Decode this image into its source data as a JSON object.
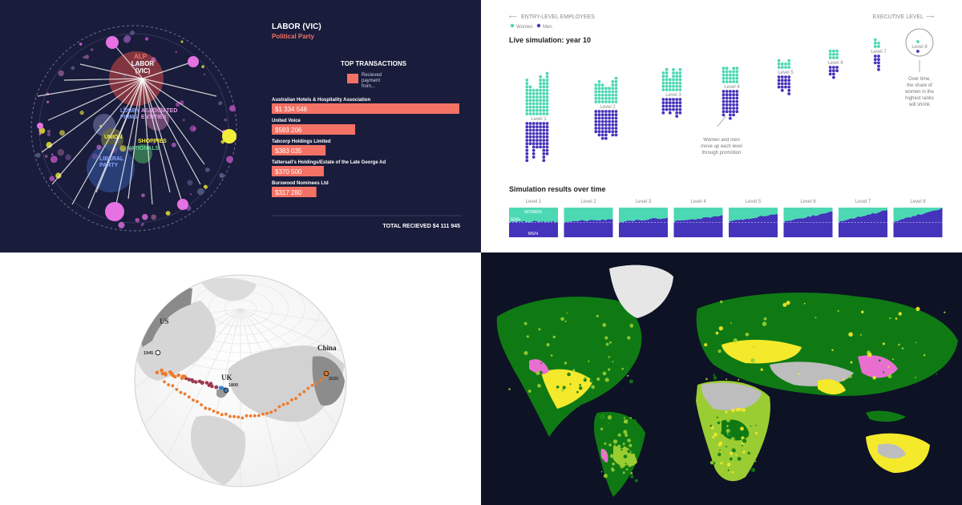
{
  "panels": {
    "donations": {
      "title": "LABOR (VIC)",
      "subtitle": "Political Party",
      "section_title": "TOP TRANSACTIONS",
      "legend_label_lines": [
        "Recieved",
        "payment",
        "from..."
      ],
      "total_label": "TOTAL RECIEVED $4 111 945",
      "network_labels": {
        "alp": "ALP",
        "labor_vic_lines": [
          "LABOR",
          "(VIC)"
        ],
        "lobby_lines": [
          "LOBBY",
          "FIRMS"
        ],
        "associated_lines": [
          "ASSOCIATED",
          "ENTITIES"
        ],
        "union": "UNION",
        "shoppies": "SHOPPIES",
        "nationals": "NATIONALS",
        "liberal_lines": [
          "LIBERAL",
          "PARTY"
        ]
      },
      "colors": {
        "bar": "#f47265",
        "accent": "#f47265",
        "background": "#191c3a"
      },
      "chart_data": {
        "type": "bar",
        "categories": [
          "Australian Hotels & Hospitality Association",
          "United Voice",
          "Tabcorp Holdings Limited",
          "Tattersall's Holdings/Estate of the Late George Ad",
          "Burswood Nominees Ltd"
        ],
        "values": [
          1334546,
          593206,
          383035,
          370500,
          317280
        ],
        "value_labels": [
          "$1 334 546",
          "$593 206",
          "$383 035",
          "$370 500",
          "$317 280"
        ],
        "title": "TOP TRANSACTIONS"
      }
    },
    "simulation": {
      "left_caption": "ENTRY-LEVEL EMPLOYEES",
      "right_caption": "EXECUTIVE LEVEL",
      "legend": [
        "Women",
        "Men"
      ],
      "live_title": "Live simulation: year 10",
      "levels": [
        "Level 1",
        "Level 2",
        "Level 3",
        "Level 4",
        "Level 5",
        "Level 6",
        "Level 7",
        "Level 8"
      ],
      "annotation_promotion_lines": [
        "Women and men",
        "move up each level",
        "through promotion"
      ],
      "annotation_share_lines": [
        "Over time,",
        "the share of",
        "women in the",
        "highest ranks",
        "will shrink"
      ],
      "results_title": "Simulation results over time",
      "women_label": "WOMEN",
      "men_label": "MEN",
      "fifty_label": "50%",
      "colors": {
        "women": "#4dd8b4",
        "men": "#4433bb"
      }
    },
    "globe": {
      "labels": {
        "us": "US",
        "uk": "UK",
        "china": "China"
      },
      "years": {
        "y1945": "1945",
        "y1800": "1800",
        "y2020": "2020"
      },
      "colors": {
        "land": "#d9d9d9",
        "highlight": "#888888",
        "path_early": "#3a7ec4",
        "path_mid": "#9e3a50",
        "path_late": "#ef7a2a"
      }
    },
    "world_map": {
      "colors": {
        "ocean": "#0d1224",
        "forest": "#0f7a14",
        "grass": "#9acd32",
        "crop": "#f5e92b",
        "urban": "#e86fd0",
        "ice": "#e6e6e6",
        "desert": "#bdbdbd"
      }
    }
  }
}
